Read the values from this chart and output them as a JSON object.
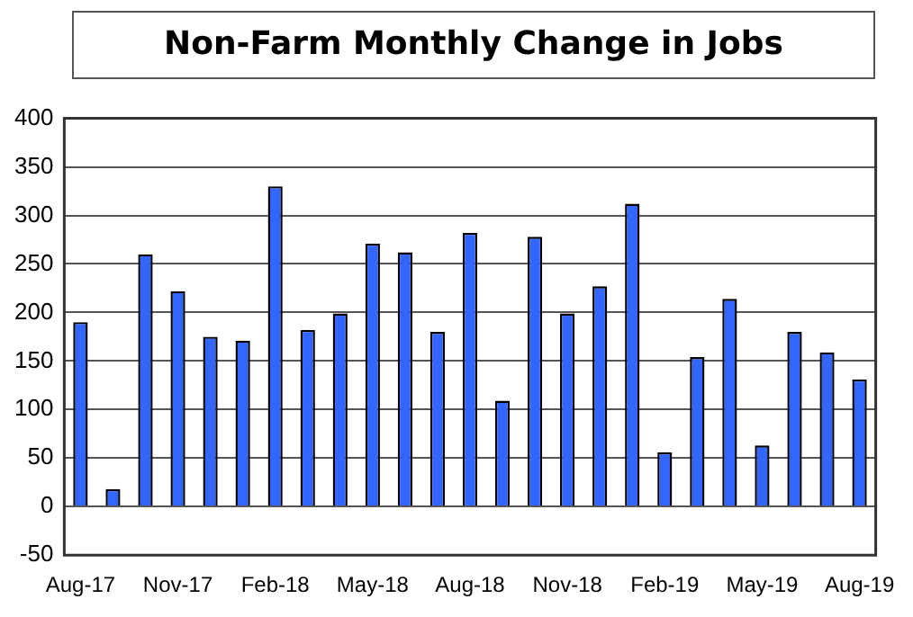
{
  "chart_data": {
    "type": "bar",
    "title": "Non-Farm Monthly Change in Jobs",
    "categories": [
      "Aug-17",
      null,
      null,
      "Nov-17",
      null,
      null,
      "Feb-18",
      null,
      null,
      "May-18",
      null,
      null,
      "Aug-18",
      null,
      null,
      "Nov-18",
      null,
      null,
      "Feb-19",
      null,
      null,
      "May-19",
      null,
      null,
      "Aug-19"
    ],
    "values": [
      190,
      18,
      260,
      222,
      175,
      171,
      330,
      182,
      199,
      271,
      262,
      180,
      282,
      109,
      278,
      199,
      227,
      312,
      56,
      154,
      214,
      63,
      180,
      159,
      131
    ],
    "color": "#3366ff",
    "ylim": [
      -50,
      400
    ],
    "yticks": [
      -50,
      0,
      50,
      100,
      150,
      200,
      250,
      300,
      350,
      400
    ],
    "grid": "y"
  }
}
